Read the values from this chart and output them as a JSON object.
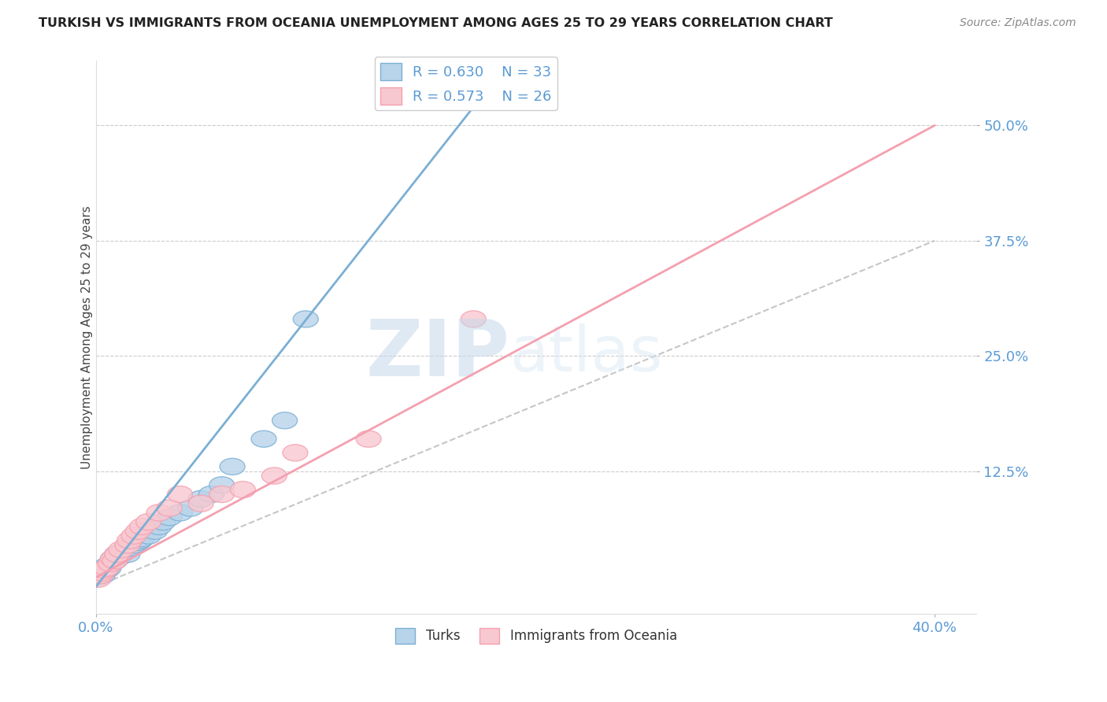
{
  "title": "TURKISH VS IMMIGRANTS FROM OCEANIA UNEMPLOYMENT AMONG AGES 25 TO 29 YEARS CORRELATION CHART",
  "source": "Source: ZipAtlas.com",
  "ylabel": "Unemployment Among Ages 25 to 29 years",
  "xlim": [
    0.0,
    0.42
  ],
  "ylim": [
    -0.03,
    0.57
  ],
  "xticks": [
    0.0,
    0.4
  ],
  "xticklabels": [
    "0.0%",
    "40.0%"
  ],
  "ytick_positions": [
    0.125,
    0.25,
    0.375,
    0.5
  ],
  "ytick_labels": [
    "12.5%",
    "25.0%",
    "37.5%",
    "50.0%"
  ],
  "title_color": "#222222",
  "axis_color": "#5b9bd5",
  "grid_color": "#cccccc",
  "watermark_zip": "ZIP",
  "watermark_atlas": "atlas",
  "legend_r1": "R = 0.630",
  "legend_n1": "N = 33",
  "legend_r2": "R = 0.573",
  "legend_n2": "N = 26",
  "blue_color": "#7bafd4",
  "pink_color": "#f4a0b0",
  "blue_fill": "#b8d4ea",
  "pink_fill": "#f8c8d0",
  "turks_x": [
    0.001,
    0.002,
    0.003,
    0.005,
    0.005,
    0.006,
    0.007,
    0.008,
    0.009,
    0.01,
    0.011,
    0.013,
    0.014,
    0.015,
    0.016,
    0.018,
    0.02,
    0.021,
    0.022,
    0.025,
    0.028,
    0.03,
    0.032,
    0.035,
    0.04,
    0.045,
    0.05,
    0.055,
    0.06,
    0.065,
    0.08,
    0.09,
    0.1
  ],
  "turks_y": [
    0.01,
    0.015,
    0.012,
    0.018,
    0.022,
    0.02,
    0.025,
    0.03,
    0.028,
    0.035,
    0.032,
    0.038,
    0.04,
    0.035,
    0.042,
    0.045,
    0.048,
    0.05,
    0.052,
    0.055,
    0.06,
    0.065,
    0.07,
    0.075,
    0.08,
    0.085,
    0.095,
    0.1,
    0.11,
    0.13,
    0.16,
    0.18,
    0.29
  ],
  "oceania_x": [
    0.001,
    0.002,
    0.003,
    0.004,
    0.005,
    0.007,
    0.008,
    0.009,
    0.01,
    0.012,
    0.015,
    0.016,
    0.018,
    0.02,
    0.022,
    0.025,
    0.03,
    0.035,
    0.04,
    0.05,
    0.06,
    0.07,
    0.085,
    0.095,
    0.13,
    0.18
  ],
  "oceania_y": [
    0.008,
    0.012,
    0.015,
    0.018,
    0.02,
    0.025,
    0.03,
    0.028,
    0.035,
    0.04,
    0.045,
    0.05,
    0.055,
    0.06,
    0.065,
    0.07,
    0.08,
    0.085,
    0.1,
    0.09,
    0.1,
    0.105,
    0.12,
    0.145,
    0.16,
    0.29
  ],
  "blue_reg": [
    0.0,
    0.18,
    0.0,
    0.52
  ],
  "pink_reg": [
    0.0,
    0.4,
    0.01,
    0.5
  ],
  "ref_line": [
    0.0,
    0.4,
    0.0,
    0.375
  ]
}
